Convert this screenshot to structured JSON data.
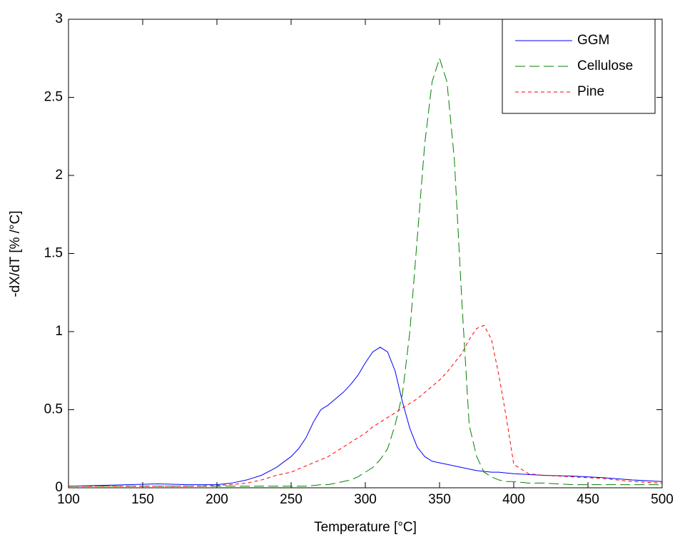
{
  "chart_data": {
    "type": "line",
    "xlabel": "Temperature [°C]",
    "ylabel": "-dX/dT [% /°C]",
    "x": [
      100,
      120,
      140,
      160,
      180,
      200,
      210,
      220,
      230,
      240,
      250,
      255,
      260,
      265,
      270,
      275,
      280,
      285,
      290,
      295,
      300,
      305,
      310,
      315,
      320,
      325,
      330,
      335,
      340,
      345,
      350,
      355,
      360,
      365,
      370,
      375,
      380,
      385,
      390,
      395,
      400,
      410,
      420,
      440,
      460,
      480,
      500
    ],
    "series": [
      {
        "name": "GGM",
        "color": "#0000ff",
        "linestyle": "solid",
        "values": [
          0.01,
          0.015,
          0.02,
          0.025,
          0.02,
          0.02,
          0.03,
          0.05,
          0.08,
          0.13,
          0.2,
          0.25,
          0.32,
          0.42,
          0.5,
          0.53,
          0.57,
          0.61,
          0.66,
          0.72,
          0.8,
          0.87,
          0.9,
          0.87,
          0.75,
          0.55,
          0.38,
          0.26,
          0.2,
          0.17,
          0.16,
          0.15,
          0.14,
          0.13,
          0.12,
          0.11,
          0.105,
          0.1,
          0.1,
          0.095,
          0.09,
          0.085,
          0.08,
          0.075,
          0.065,
          0.05,
          0.04
        ]
      },
      {
        "name": "Cellulose",
        "color": "#008000",
        "linestyle": "longdash",
        "values": [
          0.01,
          0.01,
          0.01,
          0.01,
          0.01,
          0.01,
          0.01,
          0.01,
          0.01,
          0.01,
          0.01,
          0.01,
          0.01,
          0.015,
          0.02,
          0.02,
          0.03,
          0.04,
          0.05,
          0.07,
          0.1,
          0.13,
          0.18,
          0.25,
          0.4,
          0.6,
          1.0,
          1.6,
          2.2,
          2.6,
          2.75,
          2.6,
          2.1,
          1.2,
          0.4,
          0.2,
          0.1,
          0.07,
          0.05,
          0.04,
          0.04,
          0.03,
          0.03,
          0.02,
          0.02,
          0.02,
          0.02
        ]
      },
      {
        "name": "Pine",
        "color": "#ff0000",
        "linestyle": "dashed",
        "values": [
          0.01,
          0.01,
          0.01,
          0.01,
          0.01,
          0.015,
          0.02,
          0.03,
          0.05,
          0.08,
          0.1,
          0.12,
          0.14,
          0.16,
          0.18,
          0.2,
          0.23,
          0.26,
          0.29,
          0.32,
          0.35,
          0.39,
          0.42,
          0.45,
          0.48,
          0.51,
          0.54,
          0.57,
          0.61,
          0.65,
          0.69,
          0.74,
          0.8,
          0.86,
          0.95,
          1.02,
          1.04,
          0.95,
          0.72,
          0.45,
          0.15,
          0.09,
          0.08,
          0.07,
          0.06,
          0.04,
          0.03
        ]
      }
    ],
    "xlim": [
      100,
      500
    ],
    "xticks": [
      100,
      150,
      200,
      250,
      300,
      350,
      400,
      450,
      500
    ],
    "ylim": [
      0,
      3
    ],
    "yticks": [
      0,
      0.5,
      1,
      1.5,
      2,
      2.5,
      3
    ],
    "grid": false,
    "legend": "upper right"
  }
}
